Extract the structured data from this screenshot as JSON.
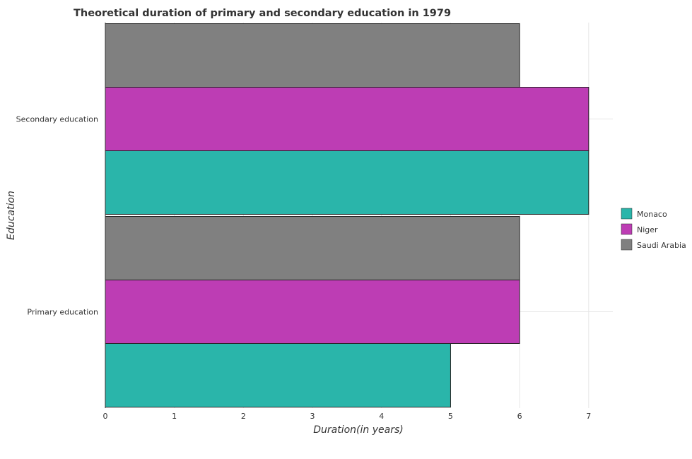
{
  "chart_data": {
    "type": "bar",
    "orientation": "horizontal",
    "title": "Theoretical duration of primary and secondary education in 1979",
    "xlabel": "Duration(in years)",
    "ylabel": "Education",
    "categories": [
      "Primary education",
      "Secondary education"
    ],
    "xlim": [
      0,
      7.35
    ],
    "x_ticks": [
      "0",
      "1",
      "2",
      "3",
      "4",
      "5",
      "6",
      "7"
    ],
    "grid": true,
    "legend_position": "right",
    "series": [
      {
        "name": "Monaco",
        "color": "#2ab5aa",
        "values": [
          5,
          7
        ]
      },
      {
        "name": "Niger",
        "color": "#bd3db4",
        "values": [
          6,
          7
        ]
      },
      {
        "name": "Saudi Arabia",
        "color": "#808080",
        "values": [
          6,
          6
        ]
      }
    ]
  }
}
